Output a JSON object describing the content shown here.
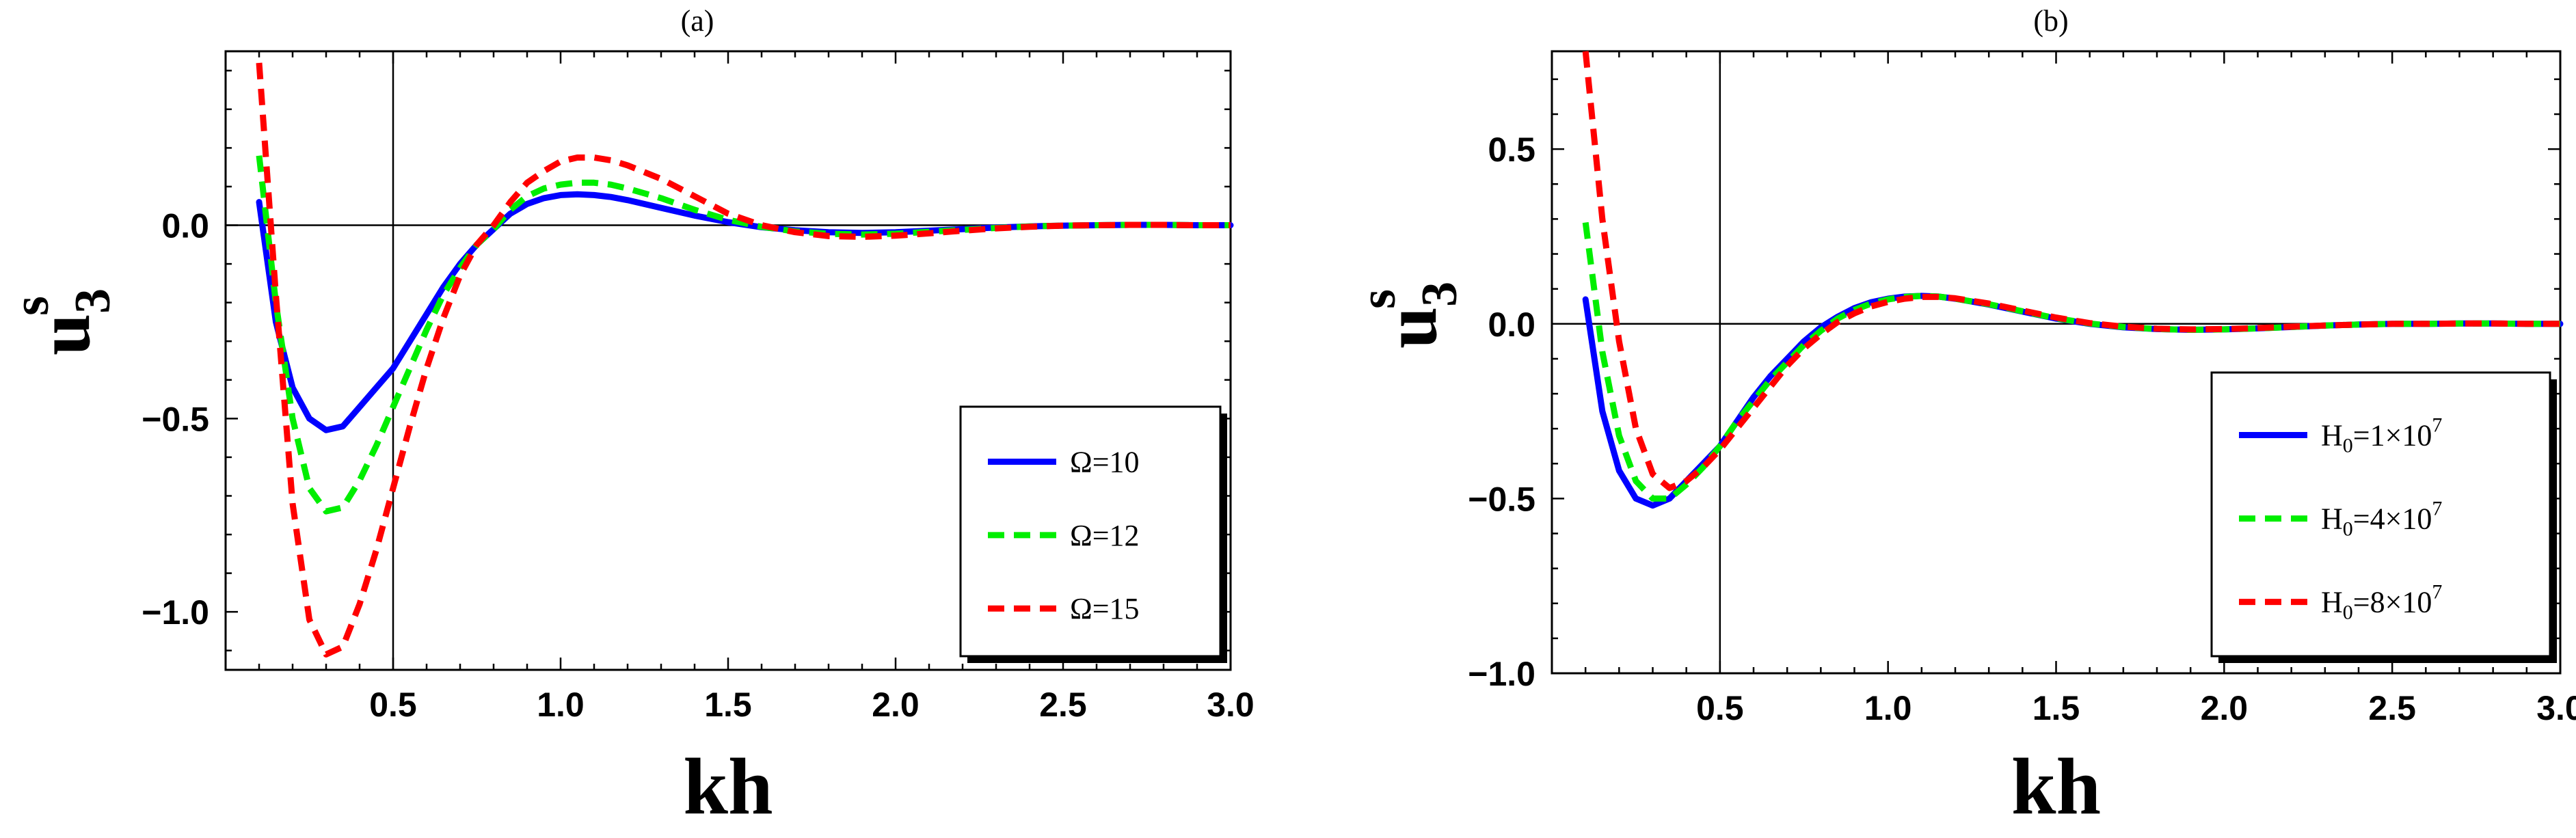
{
  "chart_data": [
    {
      "type": "line",
      "title": "(a)",
      "xlabel": "kh",
      "ylabel": "u",
      "ylabel_subscript": "3",
      "ylabel_superscript": "s",
      "xlim": [
        0.0,
        3.0
      ],
      "ylim": [
        -1.15,
        0.45
      ],
      "xticks": [
        "0.5",
        "1.0",
        "1.5",
        "2.0",
        "2.5",
        "3.0"
      ],
      "yticks": [
        "0.0",
        "−0.5",
        "−1.0"
      ],
      "vertical_reference": 0.5,
      "legend_position": "bottom-right",
      "x": [
        0.1,
        0.15,
        0.2,
        0.25,
        0.3,
        0.35,
        0.4,
        0.45,
        0.5,
        0.55,
        0.6,
        0.65,
        0.7,
        0.75,
        0.8,
        0.85,
        0.9,
        0.95,
        1.0,
        1.05,
        1.1,
        1.15,
        1.2,
        1.3,
        1.4,
        1.5,
        1.6,
        1.7,
        1.8,
        1.9,
        2.0,
        2.1,
        2.2,
        2.3,
        2.4,
        2.5,
        2.6,
        2.7,
        2.8,
        2.9,
        3.0
      ],
      "series": [
        {
          "name": "Ω=10",
          "color": "#0000ff",
          "dash": "solid",
          "values": [
            0.06,
            -0.25,
            -0.42,
            -0.5,
            -0.53,
            -0.52,
            -0.47,
            -0.42,
            -0.37,
            -0.3,
            -0.23,
            -0.16,
            -0.1,
            -0.05,
            -0.01,
            0.03,
            0.055,
            0.07,
            0.078,
            0.08,
            0.078,
            0.073,
            0.065,
            0.045,
            0.025,
            0.008,
            -0.005,
            -0.013,
            -0.018,
            -0.02,
            -0.018,
            -0.014,
            -0.01,
            -0.006,
            -0.003,
            -0.001,
            0.0,
            0.001,
            0.001,
            0.0,
            0.0
          ]
        },
        {
          "name": "Ω=12",
          "color": "#00ee00",
          "dash": "dashed",
          "values": [
            0.18,
            -0.2,
            -0.5,
            -0.68,
            -0.74,
            -0.73,
            -0.66,
            -0.57,
            -0.47,
            -0.37,
            -0.27,
            -0.18,
            -0.11,
            -0.05,
            -0.01,
            0.04,
            0.075,
            0.095,
            0.105,
            0.11,
            0.11,
            0.105,
            0.095,
            0.07,
            0.04,
            0.014,
            -0.004,
            -0.016,
            -0.022,
            -0.024,
            -0.022,
            -0.017,
            -0.012,
            -0.007,
            -0.003,
            -0.001,
            0.0,
            0.001,
            0.001,
            0.0,
            0.0
          ]
        },
        {
          "name": "Ω=15",
          "color": "#ff0000",
          "dash": "dashed",
          "values": [
            0.42,
            -0.18,
            -0.72,
            -1.02,
            -1.11,
            -1.09,
            -0.98,
            -0.84,
            -0.68,
            -0.52,
            -0.37,
            -0.24,
            -0.13,
            -0.05,
            0.0,
            0.06,
            0.11,
            0.14,
            0.165,
            0.175,
            0.175,
            0.168,
            0.155,
            0.12,
            0.075,
            0.03,
            0.0,
            -0.018,
            -0.028,
            -0.03,
            -0.027,
            -0.021,
            -0.014,
            -0.008,
            -0.004,
            -0.001,
            0.0,
            0.001,
            0.001,
            0.0,
            0.0
          ]
        }
      ]
    },
    {
      "type": "line",
      "title": "(b)",
      "xlabel": "kh",
      "ylabel": "u",
      "ylabel_subscript": "3",
      "ylabel_superscript": "s",
      "xlim": [
        0.0,
        3.0
      ],
      "ylim": [
        -1.0,
        0.78
      ],
      "xticks": [
        "0.5",
        "1.0",
        "1.5",
        "2.0",
        "2.5",
        "3.0"
      ],
      "yticks": [
        "0.5",
        "0.0",
        "−0.5",
        "−1.0"
      ],
      "vertical_reference": 0.5,
      "legend_position": "bottom-right",
      "x": [
        0.1,
        0.15,
        0.2,
        0.25,
        0.3,
        0.35,
        0.4,
        0.45,
        0.5,
        0.55,
        0.6,
        0.65,
        0.7,
        0.75,
        0.8,
        0.85,
        0.9,
        0.95,
        1.0,
        1.05,
        1.1,
        1.15,
        1.2,
        1.3,
        1.4,
        1.5,
        1.6,
        1.7,
        1.8,
        1.9,
        2.0,
        2.1,
        2.2,
        2.3,
        2.4,
        2.5,
        2.6,
        2.7,
        2.8,
        2.9,
        3.0
      ],
      "series": [
        {
          "name": "H",
          "sub": "0",
          "base": "=1×10",
          "exp": "7",
          "color": "#0000ff",
          "dash": "solid",
          "values": [
            0.07,
            -0.25,
            -0.42,
            -0.5,
            -0.52,
            -0.5,
            -0.45,
            -0.4,
            -0.35,
            -0.28,
            -0.21,
            -0.15,
            -0.1,
            -0.05,
            -0.01,
            0.02,
            0.045,
            0.062,
            0.072,
            0.078,
            0.08,
            0.078,
            0.072,
            0.055,
            0.035,
            0.015,
            0.0,
            -0.01,
            -0.015,
            -0.017,
            -0.016,
            -0.013,
            -0.009,
            -0.005,
            -0.002,
            0.0,
            0.0,
            0.001,
            0.001,
            0.0,
            0.0
          ]
        },
        {
          "name": "H",
          "sub": "0",
          "base": "=4×10",
          "exp": "7",
          "color": "#00ee00",
          "dash": "dashed",
          "values": [
            0.29,
            -0.08,
            -0.32,
            -0.45,
            -0.5,
            -0.5,
            -0.46,
            -0.41,
            -0.35,
            -0.28,
            -0.22,
            -0.16,
            -0.11,
            -0.06,
            -0.02,
            0.015,
            0.04,
            0.058,
            0.07,
            0.077,
            0.08,
            0.078,
            0.072,
            0.056,
            0.036,
            0.016,
            0.001,
            -0.009,
            -0.015,
            -0.017,
            -0.016,
            -0.013,
            -0.009,
            -0.005,
            -0.002,
            0.0,
            0.0,
            0.001,
            0.001,
            0.0,
            0.0
          ]
        },
        {
          "name": "H",
          "sub": "0",
          "base": "=8×10",
          "exp": "7",
          "color": "#ff0000",
          "dash": "dashed",
          "values": [
            0.78,
            0.3,
            -0.05,
            -0.3,
            -0.43,
            -0.47,
            -0.45,
            -0.41,
            -0.36,
            -0.3,
            -0.24,
            -0.18,
            -0.12,
            -0.07,
            -0.03,
            0.005,
            0.03,
            0.05,
            0.063,
            0.072,
            0.077,
            0.077,
            0.073,
            0.058,
            0.038,
            0.018,
            0.002,
            -0.008,
            -0.014,
            -0.016,
            -0.015,
            -0.012,
            -0.008,
            -0.005,
            -0.002,
            0.0,
            0.0,
            0.001,
            0.001,
            0.0,
            0.0
          ]
        }
      ]
    }
  ]
}
